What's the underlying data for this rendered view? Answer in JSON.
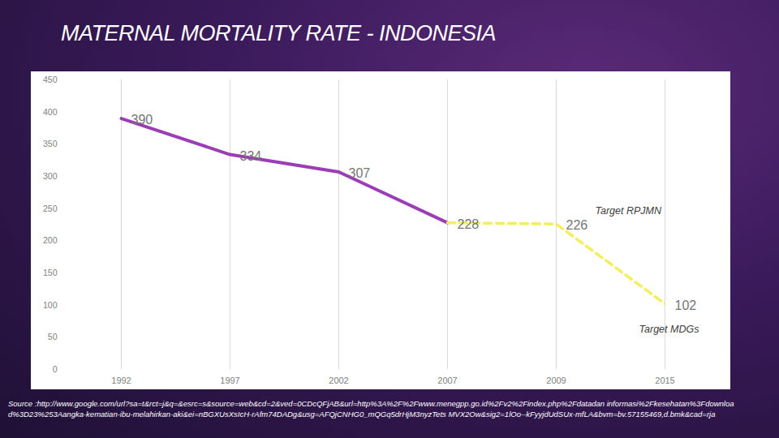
{
  "chart_data": {
    "type": "line",
    "title": "MATERNAL MORTALITY RATE - INDONESIA",
    "categories": [
      "1992",
      "1997",
      "2002",
      "2007",
      "2009",
      "2015"
    ],
    "series": [
      {
        "color": "#9b3db5",
        "line_style": "solid",
        "values": [
          390,
          334,
          307,
          228,
          null,
          null
        ]
      },
      {
        "color": "#f3ef5c",
        "line_style": "dashed",
        "values": [
          null,
          null,
          null,
          228,
          226,
          102
        ]
      }
    ],
    "ylim": [
      0,
      450
    ],
    "yticks": [
      0,
      50,
      100,
      150,
      200,
      250,
      300,
      350,
      400,
      450
    ],
    "grid": true,
    "data_labels": true,
    "annotations": [
      {
        "text": "Target RPJMN",
        "x": "2009"
      },
      {
        "text": "Target MDGs",
        "x": "2015"
      }
    ],
    "source": "Source :http://www.google.com/url?sa=t&rct=j&q=&esrc=s&source=web&cd=2&ved=0CDcQFjAB&url=http%3A%2F%2Fwww.menegpp.go.id%2Fv2%2Findex.php%2Fdatadan informasi%2Fkesehatan%3Fdownload%3D23%253Aangka-kematian-ibu-melahirkan-aki&ei=nBGXUsXsIcH-rAfm74DADg&usg=AFQjCNHG0_mQGq5drHjM3nyzTets MVX2Ow&sig2=1lOo--kFyyjdUdSUx-mfLA&bvm=bv.57155469,d.bmk&cad=rja"
  }
}
